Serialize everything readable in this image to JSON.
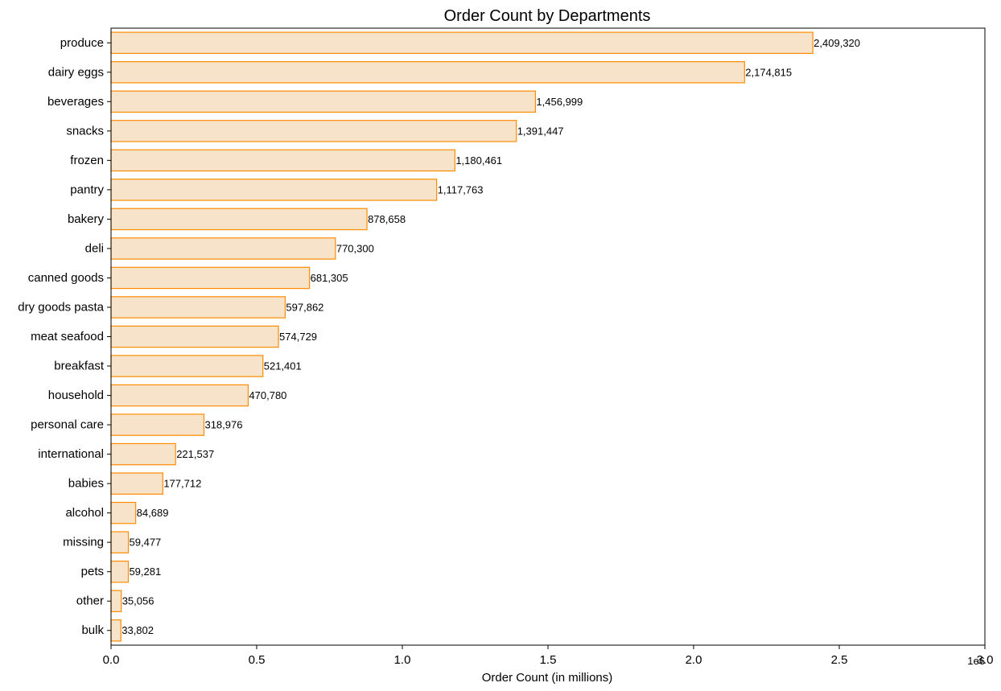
{
  "chart_data": {
    "type": "bar",
    "orientation": "horizontal",
    "title": "Order Count by Departments",
    "xlabel": "Order Count (in millions)",
    "ylabel": "",
    "x_offset_label": "1e6",
    "xlim": [
      0,
      3000000
    ],
    "x_ticks": [
      0,
      500000,
      1000000,
      1500000,
      2000000,
      2500000,
      3000000
    ],
    "x_tick_labels": [
      "0.0",
      "0.5",
      "1.0",
      "1.5",
      "2.0",
      "2.5",
      "3.0"
    ],
    "grid": false,
    "categories": [
      "produce",
      "dairy eggs",
      "beverages",
      "snacks",
      "frozen",
      "pantry",
      "bakery",
      "deli",
      "canned goods",
      "dry goods pasta",
      "meat seafood",
      "breakfast",
      "household",
      "personal care",
      "international",
      "babies",
      "alcohol",
      "missing",
      "pets",
      "other",
      "bulk"
    ],
    "values": [
      2409320,
      2174815,
      1456999,
      1391447,
      1180461,
      1117763,
      878658,
      770300,
      681305,
      597862,
      574729,
      521401,
      470780,
      318976,
      221537,
      177712,
      84689,
      59477,
      59281,
      35056,
      33802
    ],
    "value_labels": [
      "2,409,320",
      "2,174,815",
      "1,456,999",
      "1,391,447",
      "1,180,461",
      "1,117,763",
      "878,658",
      "770,300",
      "681,305",
      "597,862",
      "574,729",
      "521,401",
      "470,780",
      "318,976",
      "221,537",
      "177,712",
      "84,689",
      "59,477",
      "59,281",
      "35,056",
      "33,802"
    ],
    "bar_fill": "#f7e3c9",
    "bar_edge": "#ff8c00"
  }
}
